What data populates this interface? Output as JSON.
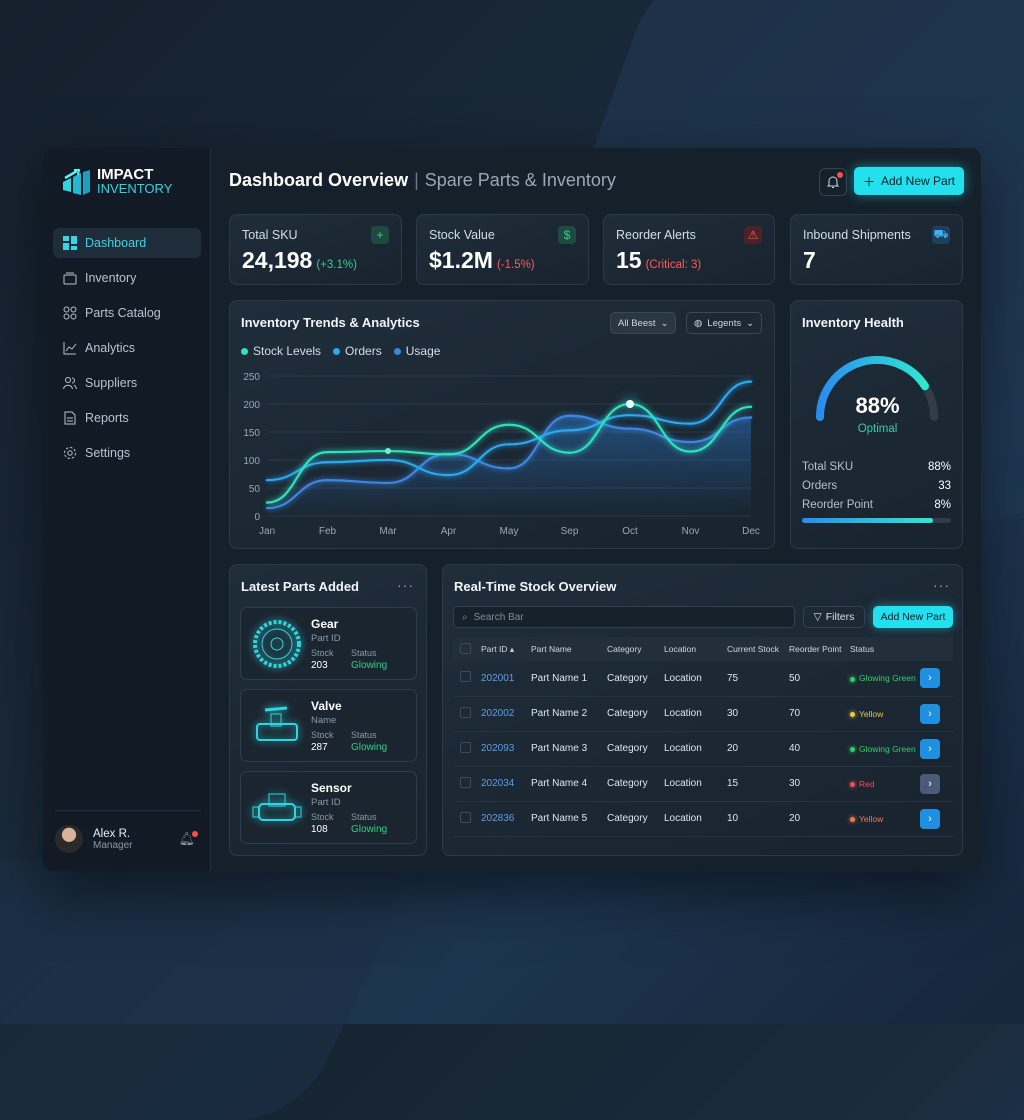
{
  "brand": {
    "line1": "IMPACT",
    "line2": "INVENTORY"
  },
  "sidebar": {
    "items": [
      {
        "label": "Dashboard",
        "icon": "grid-icon"
      },
      {
        "label": "Inventory",
        "icon": "box-icon"
      },
      {
        "label": "Parts Catalog",
        "icon": "catalog-icon"
      },
      {
        "label": "Analytics",
        "icon": "chart-icon"
      },
      {
        "label": "Suppliers",
        "icon": "users-icon"
      },
      {
        "label": "Reports",
        "icon": "file-icon"
      },
      {
        "label": "Settings",
        "icon": "gear-icon"
      }
    ],
    "active": "Dashboard"
  },
  "user": {
    "name": "Alex R.",
    "role": "Manager"
  },
  "header": {
    "title": "Dashboard Overview",
    "subtitle": "Spare Parts & Inventory",
    "add_label": "Add New Part"
  },
  "kpis": [
    {
      "label": "Total SKU",
      "value": "24,198",
      "delta": "(+3.1%)",
      "delta_color": "#2fd08a",
      "icon": "plus-icon"
    },
    {
      "label": "Stock Value",
      "value": "$1.2M",
      "delta": "(-1.5%)",
      "delta_color": "#ff5a5a",
      "icon": "dollar-icon"
    },
    {
      "label": "Reorder Alerts",
      "value": "15",
      "delta": "(Critical: 3)",
      "delta_color": "#ff5a5a",
      "icon": "warning-icon"
    },
    {
      "label": "Inbound Shipments",
      "value": "7",
      "delta": "",
      "icon": "truck-icon"
    }
  ],
  "trends": {
    "title": "Inventory Trends & Analytics",
    "filter": "All Beest",
    "legend_dd": "Legents"
  },
  "chart_data": {
    "type": "line",
    "categories": [
      "Jan",
      "Feb",
      "Mar",
      "Apr",
      "May",
      "Sep",
      "Oct",
      "Nov",
      "Dec"
    ],
    "ylim": [
      0,
      250
    ],
    "yticks": [
      0,
      50,
      100,
      150,
      200,
      250
    ],
    "grid": true,
    "legend": "top-left",
    "series": [
      {
        "name": "Stock Levels",
        "color": "#2fe0c0",
        "values": [
          24,
          114,
          116,
          110,
          163,
          113,
          200,
          115,
          195
        ]
      },
      {
        "name": "Orders",
        "color": "#2aa8f0",
        "values": [
          64,
          96,
          100,
          73,
          128,
          153,
          180,
          165,
          240
        ]
      },
      {
        "name": "Usage",
        "color": "#3d86e0",
        "values": [
          14,
          64,
          59,
          111,
          85,
          179,
          156,
          132,
          176
        ]
      }
    ]
  },
  "health": {
    "title": "Inventory Health",
    "percent": 88,
    "percent_label": "88%",
    "status": "Optimal",
    "rows": [
      {
        "label": "Total SKU",
        "value": "88%"
      },
      {
        "label": "Orders",
        "value": "33"
      },
      {
        "label": "Reorder Point",
        "value": "8%"
      }
    ],
    "bar_fraction": 0.88
  },
  "latest": {
    "title": "Latest Parts Added",
    "items": [
      {
        "name": "Gear",
        "sub": "Part ID",
        "stock_label": "Stock",
        "stock": "203",
        "status_label": "Status",
        "status": "Glowing"
      },
      {
        "name": "Valve",
        "sub": "Name",
        "stock_label": "Stock",
        "stock": "287",
        "status_label": "Status",
        "status": "Glowing"
      },
      {
        "name": "Sensor",
        "sub": "Part ID",
        "stock_label": "Stock",
        "stock": "108",
        "status_label": "Status",
        "status": "Glowing"
      }
    ]
  },
  "stock": {
    "title": "Real-Time Stock Overview",
    "search_placeholder": "Search Bar",
    "filters": "Filters",
    "add": "Add New Part",
    "columns": [
      "Part ID",
      "Part Name",
      "Category",
      "Location",
      "Current Stock",
      "Reorder Point",
      "Status"
    ],
    "rows": [
      {
        "id": "202001",
        "name": "Part Name 1",
        "cat": "Category",
        "loc": "Location",
        "cur": "75",
        "reo": "50",
        "status": "Glowing Green",
        "color": "#2fd06a"
      },
      {
        "id": "202002",
        "name": "Part Name 2",
        "cat": "Category",
        "loc": "Location",
        "cur": "30",
        "reo": "70",
        "status": "Yellow",
        "color": "#f0c93a"
      },
      {
        "id": "202093",
        "name": "Part Name 3",
        "cat": "Category",
        "loc": "Location",
        "cur": "20",
        "reo": "40",
        "status": "Glowing Green",
        "color": "#2fd06a"
      },
      {
        "id": "202034",
        "name": "Part Name 4",
        "cat": "Category",
        "loc": "Location",
        "cur": "15",
        "reo": "30",
        "status": "Red",
        "color": "#f05050"
      },
      {
        "id": "202836",
        "name": "Part Name 5",
        "cat": "Category",
        "loc": "Location",
        "cur": "10",
        "reo": "20",
        "status": "Yellow",
        "color": "#f07a50"
      }
    ]
  }
}
